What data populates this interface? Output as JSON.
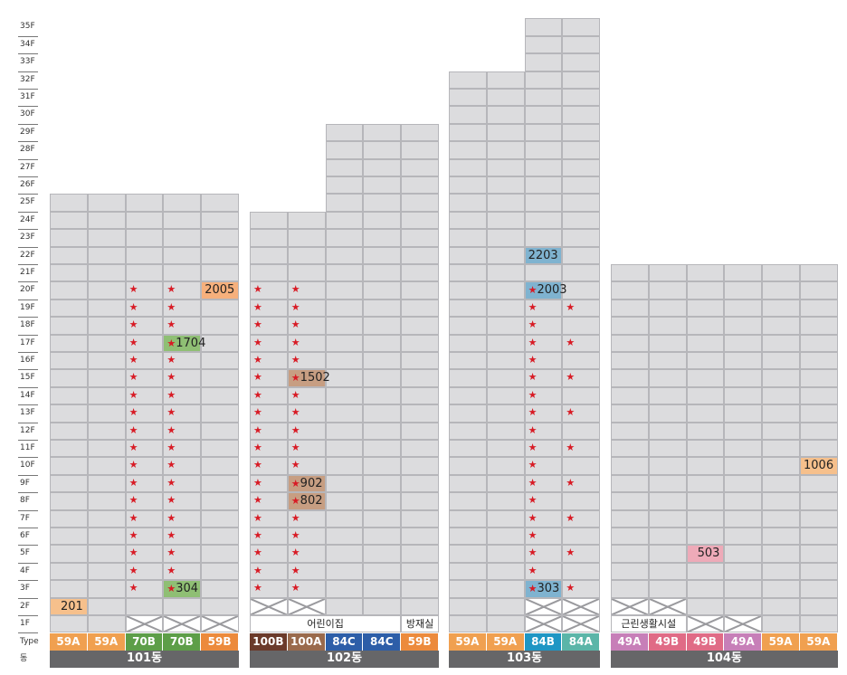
{
  "floors": [
    "35F",
    "34F",
    "33F",
    "32F",
    "31F",
    "30F",
    "29F",
    "28F",
    "27F",
    "26F",
    "25F",
    "24F",
    "23F",
    "22F",
    "21F",
    "20F",
    "19F",
    "18F",
    "17F",
    "16F",
    "15F",
    "14F",
    "13F",
    "12F",
    "11F",
    "10F",
    "9F",
    "8F",
    "7F",
    "6F",
    "5F",
    "4F",
    "3F",
    "2F",
    "1F"
  ],
  "row_labels": {
    "type": "Type",
    "dong": "동"
  },
  "colors": {
    "cell": "#dcdcde",
    "cell_border": "#b6b6ba",
    "star": "#d81b25",
    "dong_bar": "#666668",
    "59A": "#f0a050",
    "59B": "#ec8a3c",
    "70B": "#5d9e48",
    "100B": "#6b3a2a",
    "100A": "#9a6a4c",
    "84C": "#2d5ea8",
    "84B": "#1f96c4",
    "84A": "#5bb5a8",
    "49A": "#c77fb8",
    "49B": "#e06b86"
  },
  "buildings": [
    {
      "name": "101동",
      "top_floor": 25,
      "types": [
        {
          "label": "59A",
          "color": "#f0a050"
        },
        {
          "label": "59A",
          "color": "#f0a050"
        },
        {
          "label": "70B",
          "color": "#5d9e48"
        },
        {
          "label": "70B",
          "color": "#5d9e48"
        },
        {
          "label": "59B",
          "color": "#ec8a3c"
        }
      ],
      "stars": [
        {
          "col": 2,
          "floors": [
            3,
            4,
            5,
            6,
            7,
            8,
            9,
            10,
            11,
            12,
            13,
            14,
            15,
            16,
            17,
            18,
            19,
            20
          ]
        },
        {
          "col": 3,
          "floors": [
            4,
            5,
            6,
            7,
            8,
            9,
            10,
            11,
            12,
            13,
            14,
            15,
            16,
            18,
            19,
            20
          ]
        }
      ],
      "units": [
        {
          "label": "2005",
          "col": 4,
          "floor": 20,
          "color": "#f6b07c"
        },
        {
          "label": "1704",
          "col": 3,
          "floor": 17,
          "color": "#8fbf74",
          "star": true
        },
        {
          "label": "304",
          "col": 3,
          "floor": 3,
          "color": "#8fbf74",
          "star": true
        },
        {
          "label": "201",
          "col": 0,
          "floor": 2,
          "color": "#f6c08c"
        }
      ],
      "x_cells": [
        {
          "col": 2,
          "floor": 1
        },
        {
          "col": 3,
          "floor": 1
        },
        {
          "col": 4,
          "floor": 1
        }
      ],
      "facilities": []
    },
    {
      "name": "102동",
      "top_floor": 24,
      "upper_part": {
        "from_col": 2,
        "top_floor": 29
      },
      "types": [
        {
          "label": "100B",
          "color": "#6b3a2a"
        },
        {
          "label": "100A",
          "color": "#9a6a4c"
        },
        {
          "label": "84C",
          "color": "#2d5ea8"
        },
        {
          "label": "84C",
          "color": "#2d5ea8"
        },
        {
          "label": "59B",
          "color": "#ec8a3c"
        }
      ],
      "stars": [
        {
          "col": 0,
          "floors": [
            3,
            4,
            5,
            6,
            7,
            8,
            9,
            10,
            11,
            12,
            13,
            14,
            15,
            16,
            17,
            18,
            19,
            20
          ]
        },
        {
          "col": 1,
          "floors": [
            3,
            4,
            5,
            6,
            7,
            10,
            11,
            12,
            13,
            14,
            16,
            17,
            18,
            19,
            20
          ]
        }
      ],
      "units": [
        {
          "label": "1502",
          "col": 1,
          "floor": 15,
          "color": "#c79e82",
          "star": true
        },
        {
          "label": "902",
          "col": 1,
          "floor": 9,
          "color": "#c79e82",
          "star": true
        },
        {
          "label": "802",
          "col": 1,
          "floor": 8,
          "color": "#c79e82",
          "star": true
        }
      ],
      "x_cells": [
        {
          "col": 0,
          "floor": 2
        },
        {
          "col": 1,
          "floor": 2
        }
      ],
      "facilities": [
        {
          "label": "어린이집",
          "col_from": 0,
          "col_to": 3,
          "floor": 1
        },
        {
          "label": "방재실",
          "col_from": 4,
          "col_to": 4,
          "floor": 1
        }
      ]
    },
    {
      "name": "103동",
      "top_floor": 32,
      "upper_part": {
        "from_col": 2,
        "top_floor": 35
      },
      "types": [
        {
          "label": "59A",
          "color": "#f0a050"
        },
        {
          "label": "59A",
          "color": "#f0a050"
        },
        {
          "label": "84B",
          "color": "#1f96c4"
        },
        {
          "label": "84A",
          "color": "#5bb5a8"
        }
      ],
      "stars": [
        {
          "col": 2,
          "floors": [
            4,
            5,
            6,
            7,
            8,
            9,
            10,
            11,
            12,
            13,
            14,
            15,
            16,
            17,
            18,
            19
          ]
        },
        {
          "col": 3,
          "floors": [
            3,
            5,
            7,
            9,
            11,
            13,
            15,
            17,
            19
          ]
        }
      ],
      "units": [
        {
          "label": "2203",
          "col": 2,
          "floor": 22,
          "color": "#7fb3d0"
        },
        {
          "label": "2003",
          "col": 2,
          "floor": 20,
          "color": "#7fb3d0",
          "star": true
        },
        {
          "label": "303",
          "col": 2,
          "floor": 3,
          "color": "#7fb3d0",
          "star": true
        }
      ],
      "x_cells": [
        {
          "col": 2,
          "floor": 2
        },
        {
          "col": 3,
          "floor": 2
        },
        {
          "col": 2,
          "floor": 1
        },
        {
          "col": 3,
          "floor": 1
        }
      ],
      "facilities": []
    },
    {
      "name": "104동",
      "top_floor": 21,
      "types": [
        {
          "label": "49A",
          "color": "#c77fb8"
        },
        {
          "label": "49B",
          "color": "#e06b86"
        },
        {
          "label": "49B",
          "color": "#e06b86"
        },
        {
          "label": "49A",
          "color": "#c77fb8"
        },
        {
          "label": "59A",
          "color": "#f0a050"
        },
        {
          "label": "59A",
          "color": "#f0a050"
        }
      ],
      "stars": [],
      "units": [
        {
          "label": "1006",
          "col": 5,
          "floor": 10,
          "color": "#f6c08c"
        },
        {
          "label": "503",
          "col": 2,
          "floor": 5,
          "color": "#eeaab8"
        }
      ],
      "x_cells": [
        {
          "col": 0,
          "floor": 2
        },
        {
          "col": 1,
          "floor": 2
        },
        {
          "col": 2,
          "floor": 1
        },
        {
          "col": 3,
          "floor": 1
        }
      ],
      "facilities": [
        {
          "label": "근린생활시설",
          "col_from": 0,
          "col_to": 1,
          "floor": 1
        }
      ]
    }
  ]
}
